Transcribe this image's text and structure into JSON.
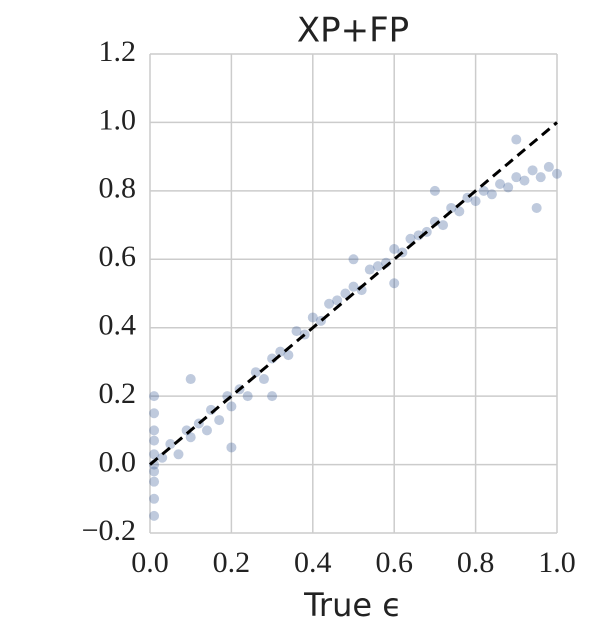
{
  "chart_data": {
    "type": "scatter",
    "title": "XP+FP",
    "x_label": "True ϵ",
    "xlim": [
      0,
      1
    ],
    "ylim": [
      -0.2,
      1.2
    ],
    "xticks": [
      {
        "value": 0,
        "label": "0.0"
      },
      0.2,
      0.4,
      0.6,
      0.8,
      {
        "value": 1,
        "label": "1.0"
      }
    ],
    "yticks": [
      {
        "value": -0.2,
        "label": "−0.2"
      },
      {
        "value": 0,
        "label": "0.0"
      },
      0.2,
      0.4,
      0.6,
      0.8,
      {
        "value": 1,
        "label": "1.0"
      },
      1.2
    ],
    "grid": true,
    "series": [
      {
        "color": "#2a4f8f",
        "x": [
          0.01,
          0.01,
          0.01,
          0.01,
          0.01,
          0.01,
          0.01,
          0.01,
          0.01,
          0.01,
          0.03,
          0.05,
          0.07,
          0.09,
          0.1,
          0.12,
          0.14,
          0.15,
          0.17,
          0.19,
          0.2,
          0.22,
          0.24,
          0.26,
          0.28,
          0.3,
          0.32,
          0.34,
          0.36,
          0.38,
          0.4,
          0.42,
          0.44,
          0.46,
          0.48,
          0.5,
          0.52,
          0.54,
          0.56,
          0.58,
          0.6,
          0.62,
          0.64,
          0.66,
          0.68,
          0.7,
          0.72,
          0.74,
          0.76,
          0.78,
          0.8,
          0.82,
          0.84,
          0.86,
          0.88,
          0.9,
          0.92,
          0.94,
          0.96,
          0.98,
          1.0,
          0.1,
          0.3,
          0.5,
          0.7,
          0.9,
          0.95,
          0.2,
          0.6
        ],
        "values": [
          -0.15,
          -0.1,
          -0.05,
          -0.02,
          0,
          0.03,
          0.07,
          0.1,
          0.15,
          0.2,
          0.02,
          0.06,
          0.03,
          0.1,
          0.08,
          0.12,
          0.1,
          0.16,
          0.13,
          0.2,
          0.17,
          0.22,
          0.2,
          0.27,
          0.25,
          0.31,
          0.33,
          0.32,
          0.39,
          0.38,
          0.43,
          0.42,
          0.47,
          0.48,
          0.5,
          0.52,
          0.51,
          0.57,
          0.58,
          0.59,
          0.63,
          0.62,
          0.66,
          0.67,
          0.68,
          0.71,
          0.7,
          0.75,
          0.74,
          0.78,
          0.77,
          0.8,
          0.79,
          0.82,
          0.81,
          0.84,
          0.83,
          0.86,
          0.84,
          0.87,
          0.85,
          0.25,
          0.2,
          0.6,
          0.8,
          0.95,
          0.75,
          0.05,
          0.53
        ]
      }
    ],
    "reference_line": {
      "x": [
        0,
        1
      ],
      "y": [
        0,
        1
      ],
      "color": "#000000"
    }
  }
}
